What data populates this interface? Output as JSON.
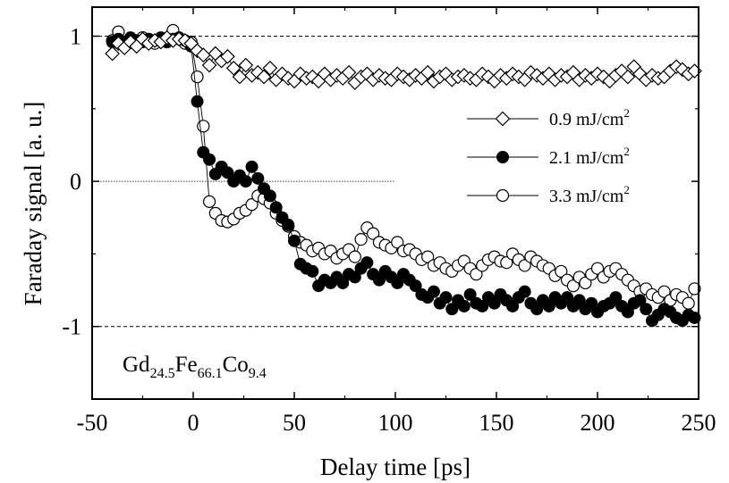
{
  "chart_data": {
    "type": "scatter",
    "xlabel": "Delay time [ps]",
    "ylabel": "Faraday signal  [a. u.]",
    "xlim": [
      -50,
      250
    ],
    "ylim": [
      -1.5,
      1.2
    ],
    "xticks": [
      -50,
      0,
      50,
      100,
      150,
      200,
      250
    ],
    "yticks": [
      -1,
      0,
      1
    ],
    "xtick_labels": [
      "-50",
      "0",
      "50",
      "100",
      "150",
      "200",
      "250"
    ],
    "ytick_labels": [
      "-1",
      "0",
      "1"
    ],
    "reference_lines": [
      {
        "y": 1,
        "x_range": [
          -50,
          250
        ],
        "style": "dashed"
      },
      {
        "y": 0,
        "x_range": [
          -50,
          100
        ],
        "style": "dotted"
      },
      {
        "y": -1,
        "x_range": [
          -50,
          250
        ],
        "style": "dashed"
      }
    ],
    "annotation": {
      "base": [
        "Gd",
        "Fe",
        "Co"
      ],
      "sub": [
        "24.5",
        "66.1",
        "9.4"
      ]
    },
    "legend_position": "right, upper middle",
    "series": [
      {
        "name": "0.9 mJ/cm",
        "unit_exponent": "2",
        "marker": "diamond-open",
        "x": [
          -40,
          -37,
          -34,
          -31,
          -28,
          -25,
          -22,
          -19,
          -16,
          -13,
          -10,
          -7,
          -4,
          -1,
          2,
          5,
          8,
          11,
          14,
          17,
          20,
          23,
          26,
          29,
          32,
          35,
          38,
          41,
          44,
          47,
          50,
          53,
          56,
          59,
          62,
          65,
          68,
          71,
          74,
          77,
          80,
          83,
          86,
          89,
          92,
          95,
          98,
          101,
          104,
          107,
          110,
          113,
          116,
          119,
          122,
          125,
          128,
          131,
          134,
          137,
          140,
          143,
          146,
          149,
          152,
          155,
          158,
          161,
          164,
          167,
          170,
          173,
          176,
          179,
          182,
          185,
          188,
          191,
          194,
          197,
          200,
          203,
          206,
          209,
          212,
          215,
          218,
          221,
          224,
          227,
          230,
          233,
          236,
          239,
          242,
          245,
          248
        ],
        "y": [
          0.88,
          0.95,
          0.92,
          0.96,
          0.93,
          0.98,
          0.95,
          0.97,
          0.96,
          0.99,
          0.97,
          0.98,
          0.97,
          0.95,
          0.9,
          0.87,
          0.8,
          0.88,
          0.83,
          0.86,
          0.78,
          0.72,
          0.8,
          0.73,
          0.75,
          0.72,
          0.78,
          0.7,
          0.74,
          0.71,
          0.69,
          0.74,
          0.71,
          0.72,
          0.69,
          0.74,
          0.7,
          0.73,
          0.71,
          0.75,
          0.68,
          0.72,
          0.74,
          0.7,
          0.73,
          0.71,
          0.7,
          0.74,
          0.72,
          0.7,
          0.73,
          0.71,
          0.75,
          0.69,
          0.72,
          0.74,
          0.7,
          0.72,
          0.73,
          0.71,
          0.7,
          0.74,
          0.72,
          0.69,
          0.73,
          0.71,
          0.74,
          0.72,
          0.7,
          0.75,
          0.73,
          0.71,
          0.74,
          0.7,
          0.73,
          0.72,
          0.75,
          0.7,
          0.73,
          0.71,
          0.74,
          0.72,
          0.69,
          0.73,
          0.76,
          0.72,
          0.79,
          0.74,
          0.7,
          0.73,
          0.71,
          0.72,
          0.76,
          0.79,
          0.77,
          0.74,
          0.76
        ]
      },
      {
        "name": "2.1 mJ/cm",
        "unit_exponent": "2",
        "marker": "circle-filled",
        "x": [
          -40,
          -37,
          -34,
          -31,
          -28,
          -25,
          -22,
          -19,
          -16,
          -13,
          -10,
          -7,
          -4,
          -1,
          2,
          5,
          8,
          11,
          14,
          17,
          20,
          23,
          26,
          29,
          32,
          35,
          38,
          41,
          44,
          47,
          50,
          53,
          56,
          59,
          62,
          65,
          68,
          71,
          74,
          77,
          80,
          83,
          86,
          89,
          92,
          95,
          98,
          101,
          104,
          107,
          110,
          113,
          116,
          119,
          122,
          125,
          128,
          131,
          134,
          137,
          140,
          143,
          146,
          149,
          152,
          155,
          158,
          161,
          164,
          167,
          170,
          173,
          176,
          179,
          182,
          185,
          188,
          191,
          194,
          197,
          200,
          203,
          206,
          209,
          212,
          215,
          218,
          221,
          224,
          227,
          230,
          233,
          236,
          239,
          242,
          245,
          248
        ],
        "y": [
          0.96,
          0.98,
          0.95,
          0.99,
          0.97,
          0.96,
          0.98,
          0.97,
          0.99,
          0.96,
          0.98,
          0.99,
          0.97,
          0.93,
          0.55,
          0.2,
          0.15,
          0.05,
          0.1,
          0.06,
          0.0,
          0.04,
          0.0,
          0.1,
          0.02,
          -0.05,
          -0.1,
          -0.18,
          -0.25,
          -0.3,
          -0.41,
          -0.57,
          -0.6,
          -0.62,
          -0.72,
          -0.68,
          -0.7,
          -0.66,
          -0.7,
          -0.64,
          -0.66,
          -0.6,
          -0.56,
          -0.64,
          -0.68,
          -0.62,
          -0.66,
          -0.7,
          -0.64,
          -0.68,
          -0.72,
          -0.78,
          -0.8,
          -0.76,
          -0.84,
          -0.8,
          -0.88,
          -0.82,
          -0.86,
          -0.78,
          -0.84,
          -0.86,
          -0.8,
          -0.84,
          -0.78,
          -0.82,
          -0.86,
          -0.8,
          -0.76,
          -0.84,
          -0.88,
          -0.82,
          -0.86,
          -0.8,
          -0.84,
          -0.8,
          -0.86,
          -0.82,
          -0.88,
          -0.84,
          -0.9,
          -0.86,
          -0.84,
          -0.8,
          -0.86,
          -0.9,
          -0.84,
          -0.82,
          -0.88,
          -0.96,
          -0.92,
          -0.88,
          -0.9,
          -0.94,
          -0.96,
          -0.92,
          -0.94
        ]
      },
      {
        "name": "3.3 mJ/cm",
        "unit_exponent": "2",
        "marker": "circle-open",
        "x": [
          -40,
          -37,
          -34,
          -31,
          -28,
          -25,
          -22,
          -19,
          -16,
          -13,
          -10,
          -7,
          -4,
          -1,
          2,
          5,
          8,
          11,
          14,
          17,
          20,
          23,
          26,
          29,
          32,
          35,
          38,
          41,
          44,
          47,
          50,
          53,
          56,
          59,
          62,
          65,
          68,
          71,
          74,
          77,
          80,
          83,
          86,
          89,
          92,
          95,
          98,
          101,
          104,
          107,
          110,
          113,
          116,
          119,
          122,
          125,
          128,
          131,
          134,
          137,
          140,
          143,
          146,
          149,
          152,
          155,
          158,
          161,
          164,
          167,
          170,
          173,
          176,
          179,
          182,
          185,
          188,
          191,
          194,
          197,
          200,
          203,
          206,
          209,
          212,
          215,
          218,
          221,
          224,
          227,
          230,
          233,
          236,
          239,
          242,
          245,
          248
        ],
        "y": [
          0.97,
          1.03,
          0.95,
          0.98,
          0.96,
          0.99,
          0.97,
          0.95,
          0.98,
          0.96,
          1.04,
          0.98,
          0.95,
          0.96,
          0.72,
          0.38,
          -0.14,
          -0.22,
          -0.27,
          -0.28,
          -0.26,
          -0.22,
          -0.2,
          -0.16,
          -0.1,
          -0.12,
          -0.15,
          -0.22,
          -0.27,
          -0.31,
          -0.38,
          -0.42,
          -0.44,
          -0.48,
          -0.46,
          -0.5,
          -0.48,
          -0.53,
          -0.5,
          -0.47,
          -0.52,
          -0.4,
          -0.32,
          -0.36,
          -0.42,
          -0.44,
          -0.46,
          -0.42,
          -0.48,
          -0.47,
          -0.5,
          -0.54,
          -0.52,
          -0.58,
          -0.56,
          -0.6,
          -0.62,
          -0.58,
          -0.55,
          -0.6,
          -0.64,
          -0.58,
          -0.54,
          -0.52,
          -0.55,
          -0.56,
          -0.5,
          -0.54,
          -0.58,
          -0.52,
          -0.55,
          -0.58,
          -0.6,
          -0.65,
          -0.62,
          -0.68,
          -0.72,
          -0.66,
          -0.7,
          -0.64,
          -0.6,
          -0.66,
          -0.62,
          -0.6,
          -0.64,
          -0.68,
          -0.72,
          -0.76,
          -0.74,
          -0.78,
          -0.8,
          -0.76,
          -0.82,
          -0.78,
          -0.8,
          -0.84,
          -0.74
        ]
      }
    ]
  }
}
